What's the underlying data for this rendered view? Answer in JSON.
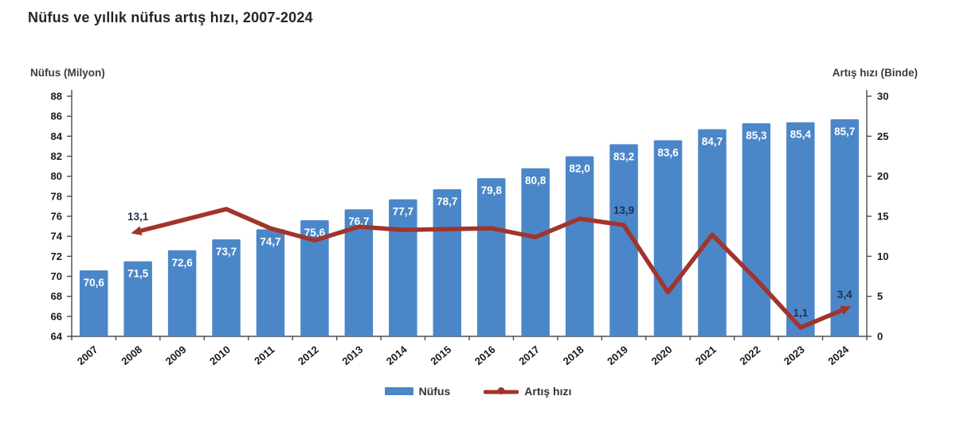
{
  "title": "Nüfus ve yıllık nüfus artış hızı, 2007-2024",
  "left_axis_title": "Nüfus (Milyon)",
  "right_axis_title": "Artış hızı (Binde)",
  "legend": {
    "bar_label": "Nüfus",
    "line_label": "Artış hızı"
  },
  "colors": {
    "bar": "#4b87c8",
    "line": "#a1342b",
    "bar_label": "#ffffff",
    "line_label": "#1f3352",
    "axis": "#4d4d4d",
    "tick_text": "#1a1a1a",
    "title": "#262626"
  },
  "chart_data": {
    "type": "bar",
    "subtype": "bar+line-dual-axis",
    "title": "Nüfus ve yıllık nüfus artış hızı, 2007-2024",
    "categories": [
      "2007",
      "2008",
      "2009",
      "2010",
      "2011",
      "2012",
      "2013",
      "2014",
      "2015",
      "2016",
      "2017",
      "2018",
      "2019",
      "2020",
      "2021",
      "2022",
      "2023",
      "2024"
    ],
    "series": [
      {
        "name": "Nüfus",
        "type": "bar",
        "axis": "left",
        "values": [
          70.6,
          71.5,
          72.6,
          73.7,
          74.7,
          75.6,
          76.7,
          77.7,
          78.7,
          79.8,
          80.8,
          82.0,
          83.2,
          83.6,
          84.7,
          85.3,
          85.4,
          85.7
        ],
        "labels": [
          "70,6",
          "71,5",
          "72,6",
          "73,7",
          "74,7",
          "75,6",
          "76,7",
          "77,7",
          "78,7",
          "79,8",
          "80,8",
          "82,0",
          "83,2",
          "83,6",
          "84,7",
          "85,3",
          "85,4",
          "85,7"
        ]
      },
      {
        "name": "Artış hızı",
        "type": "line",
        "axis": "right",
        "values": [
          null,
          13.1,
          14.5,
          15.9,
          13.5,
          12.0,
          13.7,
          13.3,
          13.4,
          13.5,
          12.4,
          14.7,
          13.9,
          5.5,
          12.7,
          7.1,
          1.1,
          3.4
        ],
        "point_labels": {
          "1": "13,1",
          "12": "13,9",
          "16": "1,1",
          "17": "3,4"
        }
      }
    ],
    "left_axis": {
      "title": "Nüfus (Milyon)",
      "min": 64,
      "max": 88,
      "step": 2
    },
    "right_axis": {
      "title": "Artış hızı (Binde)",
      "min": 0,
      "max": 30,
      "step": 5
    },
    "grid": false,
    "legend_position": "bottom"
  }
}
